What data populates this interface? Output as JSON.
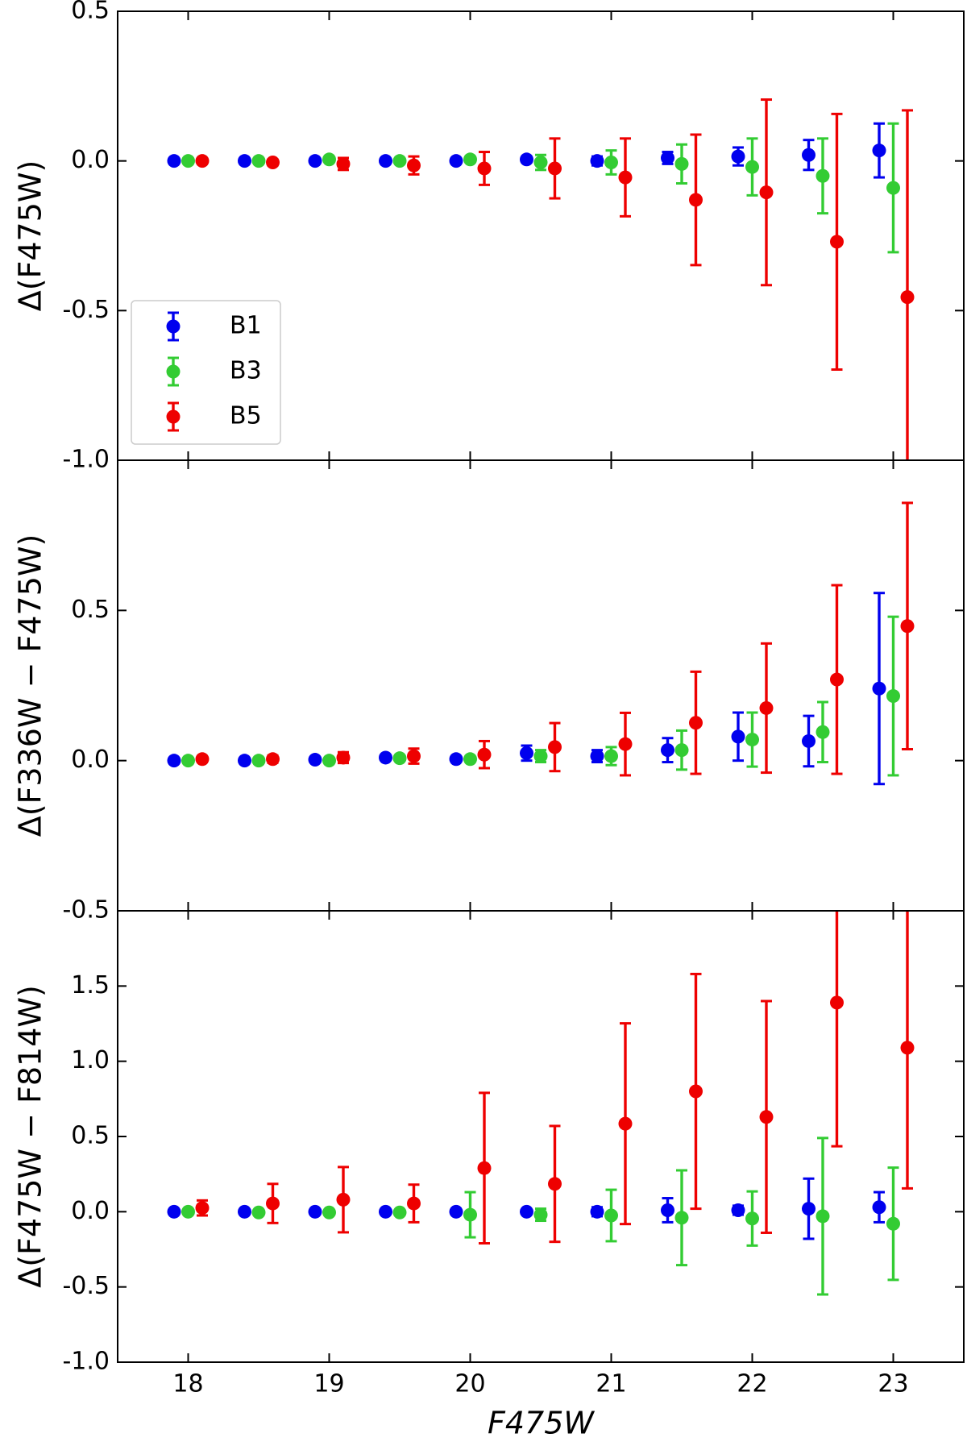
{
  "chart_data": [
    {
      "type": "errorbar",
      "ylabel": "Δ(F475W)",
      "xlim": [
        17.5,
        23.5
      ],
      "xticks": [
        18,
        19,
        20,
        21,
        22,
        23
      ],
      "ylim": [
        -1.0,
        0.5
      ],
      "yticks": [
        {
          "value": -1.0,
          "label": "-1.0"
        },
        {
          "value": -0.5,
          "label": "-0.5"
        },
        {
          "value": 0,
          "label": "0.0"
        },
        {
          "value": 0.5,
          "label": "0.5"
        }
      ],
      "legend": "lower left",
      "series": [
        {
          "name": "B1",
          "color": "#0000ee",
          "x": [
            17.9,
            18.4,
            18.9,
            19.4,
            19.9,
            20.4,
            20.9,
            21.4,
            21.9,
            22.4,
            22.9
          ],
          "values": [
            0,
            0,
            0,
            0,
            0,
            0.005,
            0,
            0.01,
            0.015,
            0.02,
            0.035
          ],
          "errors": [
            0.003,
            0.003,
            0.004,
            0.005,
            0.006,
            0.01,
            0.015,
            0.02,
            0.03,
            0.05,
            0.09
          ]
        },
        {
          "name": "B3",
          "color": "#33cc33",
          "x": [
            18.0,
            18.5,
            19.0,
            19.5,
            20.0,
            20.5,
            21.0,
            21.5,
            22.0,
            22.5,
            23.0
          ],
          "values": [
            0,
            0,
            0.005,
            0,
            0.005,
            -0.005,
            -0.005,
            -0.01,
            -0.02,
            -0.05,
            -0.09
          ],
          "errors": [
            0.003,
            0.004,
            0.005,
            0.006,
            0.01,
            0.025,
            0.04,
            0.065,
            0.095,
            0.125,
            0.215
          ]
        },
        {
          "name": "B5",
          "color": "#ee0000",
          "x": [
            18.1,
            18.6,
            19.1,
            19.6,
            20.1,
            20.6,
            21.1,
            21.6,
            22.1,
            22.6,
            23.1
          ],
          "values": [
            0,
            -0.005,
            -0.01,
            -0.015,
            -0.025,
            -0.025,
            -0.055,
            -0.13,
            -0.105,
            -0.27,
            -0.455
          ],
          "errors": [
            0.005,
            0.01,
            0.02,
            0.03,
            0.055,
            0.1,
            0.13,
            0.218,
            0.31,
            0.427,
            0.624
          ]
        }
      ]
    },
    {
      "type": "errorbar",
      "ylabel": "Δ(F336W − F475W)",
      "xlim": [
        17.5,
        23.5
      ],
      "xticks": [
        18,
        19,
        20,
        21,
        22,
        23
      ],
      "ylim": [
        -0.5,
        1.0
      ],
      "yticks": [
        {
          "value": -0.5,
          "label": "-0.5"
        },
        {
          "value": 0,
          "label": "0.0"
        },
        {
          "value": 0.5,
          "label": "0.5"
        }
      ],
      "series": [
        {
          "color": "#0000ee",
          "x": [
            17.9,
            18.4,
            18.9,
            19.4,
            19.9,
            20.4,
            20.9,
            21.4,
            21.9,
            22.4,
            22.9
          ],
          "values": [
            0,
            0,
            0.003,
            0.01,
            0.005,
            0.025,
            0.015,
            0.035,
            0.08,
            0.065,
            0.24
          ],
          "errors": [
            0.003,
            0.004,
            0.005,
            0.008,
            0.008,
            0.025,
            0.02,
            0.04,
            0.08,
            0.084,
            0.318
          ]
        },
        {
          "color": "#33cc33",
          "x": [
            18.0,
            18.5,
            19.0,
            19.5,
            20.0,
            20.5,
            21.0,
            21.5,
            22.0,
            22.5,
            23.0
          ],
          "values": [
            0,
            0,
            0,
            0.008,
            0.005,
            0.015,
            0.015,
            0.035,
            0.07,
            0.095,
            0.215
          ],
          "errors": [
            0.003,
            0.003,
            0.004,
            0.008,
            0.01,
            0.02,
            0.03,
            0.065,
            0.09,
            0.1,
            0.264
          ]
        },
        {
          "color": "#ee0000",
          "x": [
            18.1,
            18.6,
            19.1,
            19.6,
            20.1,
            20.6,
            21.1,
            21.6,
            22.1,
            22.6,
            23.1
          ],
          "values": [
            0.005,
            0.005,
            0.01,
            0.015,
            0.02,
            0.045,
            0.055,
            0.126,
            0.175,
            0.27,
            0.448
          ],
          "errors": [
            0.01,
            0.012,
            0.018,
            0.025,
            0.045,
            0.08,
            0.104,
            0.17,
            0.215,
            0.314,
            0.41
          ]
        }
      ]
    },
    {
      "type": "errorbar",
      "ylabel": "Δ(F475W − F814W)",
      "xlabel": "F475W",
      "xlim": [
        17.5,
        23.5
      ],
      "xticks": [
        18,
        19,
        20,
        21,
        22,
        23
      ],
      "ylim": [
        -1.0,
        2.0
      ],
      "yticks": [
        {
          "value": -1.0,
          "label": "-1.0"
        },
        {
          "value": -0.5,
          "label": "-0.5"
        },
        {
          "value": 0,
          "label": "0.0"
        },
        {
          "value": 0.5,
          "label": "0.5"
        },
        {
          "value": 1.0,
          "label": "1.0"
        },
        {
          "value": 1.5,
          "label": "1.5"
        }
      ],
      "series": [
        {
          "color": "#0000ee",
          "x": [
            17.9,
            18.4,
            18.9,
            19.4,
            19.9,
            20.4,
            20.9,
            21.4,
            21.9,
            22.4,
            22.9
          ],
          "values": [
            0,
            0,
            0,
            0,
            0,
            0,
            0,
            0.01,
            0.01,
            0.02,
            0.03
          ],
          "errors": [
            0.005,
            0.005,
            0.006,
            0.01,
            0.02,
            0.015,
            0.03,
            0.08,
            0.03,
            0.2,
            0.1
          ]
        },
        {
          "color": "#33cc33",
          "x": [
            18.0,
            18.5,
            19.0,
            19.5,
            20.0,
            20.5,
            21.0,
            21.5,
            22.0,
            22.5,
            23.0
          ],
          "values": [
            0,
            -0.005,
            -0.005,
            -0.005,
            -0.02,
            -0.02,
            -0.025,
            -0.04,
            -0.045,
            -0.03,
            -0.08
          ],
          "errors": [
            0.005,
            0.01,
            0.01,
            0.01,
            0.15,
            0.04,
            0.171,
            0.315,
            0.18,
            0.52,
            0.373
          ]
        },
        {
          "color": "#ee0000",
          "x": [
            18.1,
            18.6,
            19.1,
            19.6,
            20.1,
            20.6,
            21.1,
            21.6,
            22.1,
            22.6,
            23.1
          ],
          "values": [
            0.025,
            0.055,
            0.08,
            0.055,
            0.29,
            0.185,
            0.585,
            0.8,
            0.63,
            1.39,
            1.09
          ],
          "errors": [
            0.05,
            0.13,
            0.217,
            0.125,
            0.5,
            0.385,
            0.667,
            0.78,
            0.77,
            0.955,
            0.935
          ]
        }
      ]
    }
  ]
}
